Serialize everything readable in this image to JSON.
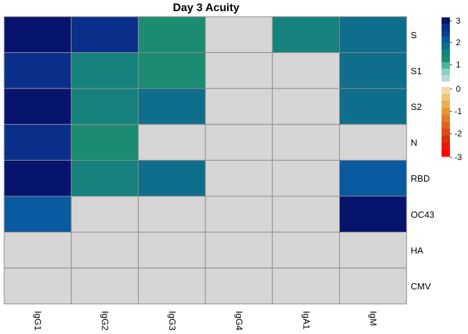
{
  "chart_data": {
    "type": "heatmap",
    "title": "Day 3 Acuity",
    "columns": [
      "IgG1",
      "IgG2",
      "IgG3",
      "IgG4",
      "IgA1",
      "IgM"
    ],
    "rows": [
      "S",
      "S1",
      "S2",
      "N",
      "RBD",
      "OC43",
      "HA",
      "CMV"
    ],
    "values": [
      [
        3.0,
        2.5,
        1.0,
        null,
        1.2,
        1.8
      ],
      [
        2.8,
        1.3,
        1.0,
        null,
        null,
        1.8
      ],
      [
        3.0,
        1.3,
        1.5,
        null,
        null,
        1.8
      ],
      [
        2.8,
        1.0,
        null,
        null,
        null,
        null
      ],
      [
        3.0,
        1.3,
        1.5,
        null,
        null,
        2.0
      ],
      [
        1.9,
        null,
        null,
        null,
        null,
        2.9
      ],
      [
        null,
        null,
        null,
        null,
        null,
        null
      ],
      [
        null,
        null,
        null,
        null,
        null,
        null
      ]
    ],
    "na_color": "#d6d6d6",
    "legend": {
      "placement": "right",
      "ticks": [
        3,
        2,
        1,
        0,
        -1,
        -2,
        -3
      ],
      "tick_labels": [
        "3",
        "2",
        "1",
        "0",
        "-1",
        "-2",
        "-3"
      ],
      "positive_colors": [
        "#b9ddd6",
        "#8fcfc0",
        "#4fb39e",
        "#1b8c72",
        "#15827e",
        "#0f6e8c",
        "#0a5aa0",
        "#0a3e98",
        "#0a2f8a",
        "#06146e"
      ],
      "negative_colors": [
        "#f5d9a0",
        "#f0c47a",
        "#ebae54",
        "#e69632",
        "#e37d22",
        "#e0641a",
        "#dc4a14",
        "#d8300e",
        "#e81808",
        "#ff0000"
      ]
    }
  }
}
